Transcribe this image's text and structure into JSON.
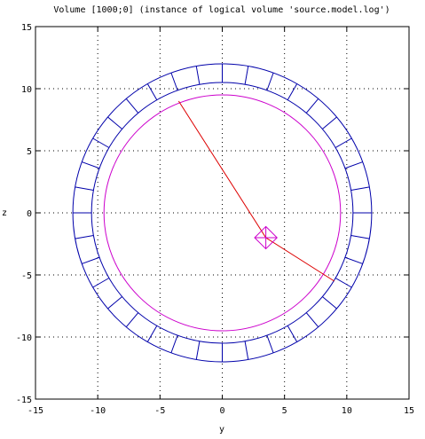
{
  "chart_data": {
    "type": "line",
    "title": "Volume [1000;0] (instance of logical volume 'source.model.log')",
    "xlabel": "y",
    "ylabel": "z",
    "xlim": [
      -15,
      15
    ],
    "ylim": [
      -15,
      15
    ],
    "xticks": [
      -15,
      -10,
      -5,
      0,
      5,
      10,
      15
    ],
    "yticks": [
      -15,
      -10,
      -5,
      0,
      5,
      10,
      15
    ],
    "grid": "dotted",
    "colors": {
      "detector": "#0000aa",
      "inner_circle": "#cc00cc",
      "track": "#dd0000",
      "marker": "#cc00cc"
    },
    "detector_ring": {
      "inner_radius": 10.5,
      "outer_radius": 12.0,
      "segments": 36
    },
    "inner_circle": {
      "radius_y": 9.5,
      "radius_z": 9.5
    },
    "track": {
      "points": [
        [
          -3.5,
          9.0
        ],
        [
          3.5,
          -2.0
        ],
        [
          9.0,
          -5.5
        ]
      ]
    },
    "marker": {
      "center": [
        3.5,
        -2.0
      ],
      "size": 0.9
    }
  }
}
